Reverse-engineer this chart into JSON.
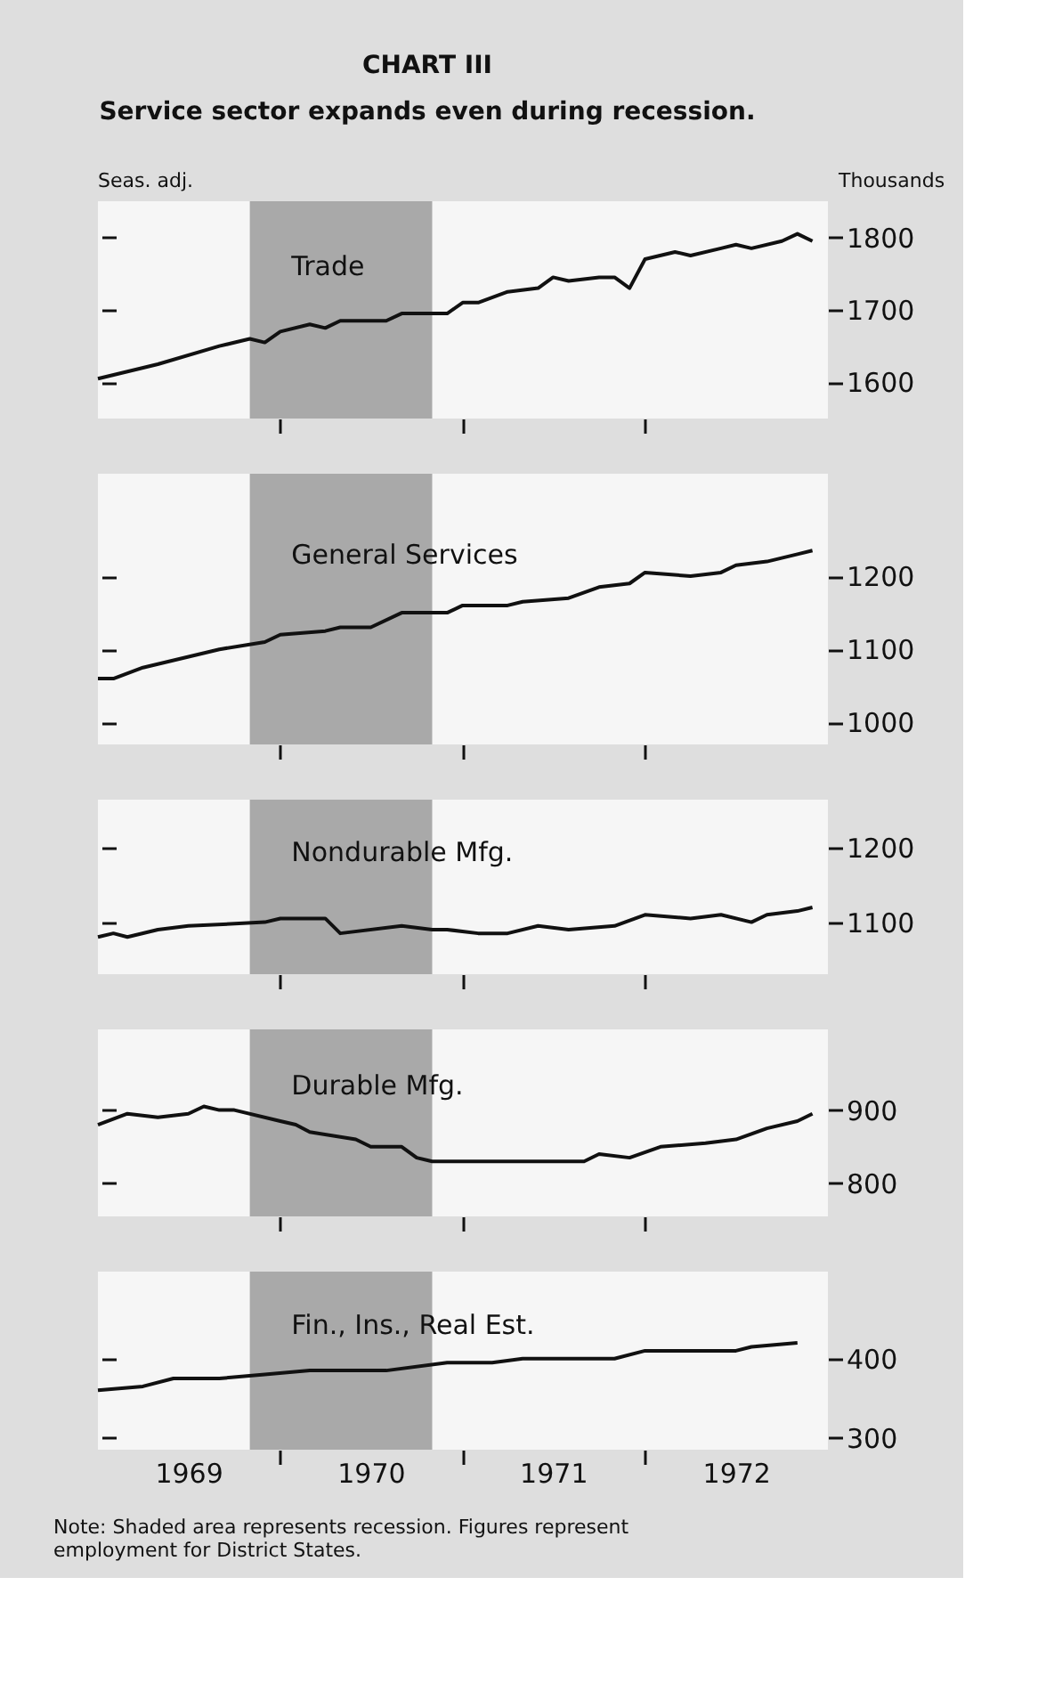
{
  "chart_data": [
    {
      "type": "line",
      "title": "CHART III",
      "subtitle": "Service sector expands even during recession.",
      "ylabel": "Thousands",
      "annotations": [
        "Seas. adj."
      ],
      "tick_labels": "y",
      "grid": false,
      "xlim": [
        "1969-01",
        "1973-01"
      ],
      "xticks": [
        {
          "value": "1970-01",
          "label": null
        },
        {
          "value": "1971-01",
          "label": null
        },
        {
          "value": "1972-01",
          "label": null
        }
      ],
      "ylim": [
        1550,
        1850
      ],
      "yticks": [
        1600,
        1700,
        1800
      ],
      "bands": [
        {
          "axis": "x",
          "from": "1969-11",
          "to": "1970-11",
          "color": "#a9a9a9"
        }
      ],
      "series": [
        {
          "name": "Trade",
          "color": "#111111",
          "x": [
            "1969-01",
            "1969-05",
            "1969-09",
            "1969-11",
            "1969-12",
            "1970-01",
            "1970-03",
            "1970-04",
            "1970-05",
            "1970-08",
            "1970-09",
            "1970-12",
            "1971-01",
            "1971-02",
            "1971-04",
            "1971-06",
            "1971-07",
            "1971-08",
            "1971-10",
            "1971-11",
            "1971-12",
            "1972-01",
            "1972-03",
            "1972-04",
            "1972-06",
            "1972-07",
            "1972-08",
            "1972-10",
            "1972-11",
            "1972-12"
          ],
          "values": [
            1605,
            1625,
            1650,
            1660,
            1655,
            1670,
            1680,
            1675,
            1685,
            1685,
            1695,
            1695,
            1710,
            1710,
            1725,
            1730,
            1745,
            1740,
            1745,
            1745,
            1730,
            1770,
            1780,
            1775,
            1785,
            1790,
            1785,
            1795,
            1805,
            1795
          ]
        }
      ]
    },
    {
      "type": "line",
      "tick_labels": "y",
      "grid": false,
      "xlim": [
        "1969-01",
        "1973-01"
      ],
      "xticks": [
        {
          "value": "1970-01",
          "label": null
        },
        {
          "value": "1971-01",
          "label": null
        },
        {
          "value": "1972-01",
          "label": null
        }
      ],
      "ylim": [
        970,
        1340
      ],
      "yticks": [
        1000,
        1100,
        1200
      ],
      "bands": [
        {
          "axis": "x",
          "from": "1969-11",
          "to": "1970-11",
          "color": "#a9a9a9"
        }
      ],
      "series": [
        {
          "name": "General Services",
          "color": "#111111",
          "x": [
            "1969-01",
            "1969-02",
            "1969-04",
            "1969-09",
            "1969-12",
            "1970-01",
            "1970-04",
            "1970-05",
            "1970-07",
            "1970-09",
            "1970-12",
            "1971-01",
            "1971-04",
            "1971-05",
            "1971-08",
            "1971-10",
            "1971-12",
            "1972-01",
            "1972-04",
            "1972-06",
            "1972-07",
            "1972-09",
            "1972-11",
            "1972-12"
          ],
          "values": [
            1060,
            1060,
            1075,
            1100,
            1110,
            1120,
            1125,
            1130,
            1130,
            1150,
            1150,
            1160,
            1160,
            1165,
            1170,
            1185,
            1190,
            1205,
            1200,
            1205,
            1215,
            1220,
            1230,
            1235
          ]
        }
      ]
    },
    {
      "type": "line",
      "tick_labels": "y",
      "grid": false,
      "xlim": [
        "1969-01",
        "1973-01"
      ],
      "xticks": [
        {
          "value": "1970-01",
          "label": null
        },
        {
          "value": "1971-01",
          "label": null
        },
        {
          "value": "1972-01",
          "label": null
        }
      ],
      "ylim": [
        1030,
        1265
      ],
      "yticks": [
        1100,
        1200
      ],
      "bands": [
        {
          "axis": "x",
          "from": "1969-11",
          "to": "1970-11",
          "color": "#a9a9a9"
        }
      ],
      "series": [
        {
          "name": "Nondurable Mfg.",
          "color": "#111111",
          "x": [
            "1969-01",
            "1969-02",
            "1969-03",
            "1969-05",
            "1969-07",
            "1969-12",
            "1970-01",
            "1970-04",
            "1970-05",
            "1970-09",
            "1970-11",
            "1970-12",
            "1971-02",
            "1971-04",
            "1971-06",
            "1971-08",
            "1971-11",
            "1972-01",
            "1972-04",
            "1972-06",
            "1972-08",
            "1972-09",
            "1972-11",
            "1972-12"
          ],
          "values": [
            1080,
            1085,
            1080,
            1090,
            1095,
            1100,
            1105,
            1105,
            1085,
            1095,
            1090,
            1090,
            1085,
            1085,
            1095,
            1090,
            1095,
            1110,
            1105,
            1110,
            1100,
            1110,
            1115,
            1120
          ]
        }
      ]
    },
    {
      "type": "line",
      "tick_labels": "y",
      "grid": false,
      "xlim": [
        "1969-01",
        "1973-01"
      ],
      "xticks": [
        {
          "value": "1970-01",
          "label": null
        },
        {
          "value": "1971-01",
          "label": null
        },
        {
          "value": "1972-01",
          "label": null
        }
      ],
      "ylim": [
        755,
        1010
      ],
      "yticks": [
        800,
        900
      ],
      "bands": [
        {
          "axis": "x",
          "from": "1969-11",
          "to": "1970-11",
          "color": "#a9a9a9"
        }
      ],
      "series": [
        {
          "name": "Durable Mfg.",
          "color": "#111111",
          "x": [
            "1969-01",
            "1969-03",
            "1969-05",
            "1969-07",
            "1969-08",
            "1969-09",
            "1969-10",
            "1970-01",
            "1970-02",
            "1970-03",
            "1970-06",
            "1970-07",
            "1970-09",
            "1970-10",
            "1970-11",
            "1971-04",
            "1971-09",
            "1971-10",
            "1971-12",
            "1972-02",
            "1972-05",
            "1972-07",
            "1972-09",
            "1972-11",
            "1972-12"
          ],
          "values": [
            880,
            895,
            890,
            895,
            905,
            900,
            900,
            885,
            880,
            870,
            860,
            850,
            850,
            835,
            830,
            830,
            830,
            840,
            835,
            850,
            855,
            860,
            875,
            885,
            895
          ]
        }
      ]
    },
    {
      "type": "line",
      "grid": false,
      "annotations": [
        "Note: Shaded area represents recession. Figures represent employment for District States."
      ],
      "xlim": [
        "1969-01",
        "1973-01"
      ],
      "xticks": [
        {
          "value": "1969-07",
          "label": "1969"
        },
        {
          "value": "1970-01",
          "label": null
        },
        {
          "value": "1970-07",
          "label": "1970"
        },
        {
          "value": "1971-01",
          "label": null
        },
        {
          "value": "1971-07",
          "label": "1971"
        },
        {
          "value": "1972-01",
          "label": null
        },
        {
          "value": "1972-07",
          "label": "1972"
        }
      ],
      "ylim": [
        285,
        510
      ],
      "yticks": [
        300,
        400
      ],
      "bands": [
        {
          "axis": "x",
          "from": "1969-11",
          "to": "1970-11",
          "color": "#a9a9a9"
        }
      ],
      "series": [
        {
          "name": "Fin., Ins., Real Est.",
          "color": "#111111",
          "x": [
            "1969-01",
            "1969-04",
            "1969-06",
            "1969-09",
            "1969-12",
            "1970-03",
            "1970-08",
            "1970-12",
            "1971-03",
            "1971-05",
            "1971-11",
            "1972-01",
            "1972-07",
            "1972-08",
            "1972-11"
          ],
          "values": [
            360,
            365,
            375,
            375,
            380,
            385,
            385,
            395,
            395,
            400,
            400,
            410,
            410,
            415,
            420
          ]
        }
      ]
    }
  ]
}
